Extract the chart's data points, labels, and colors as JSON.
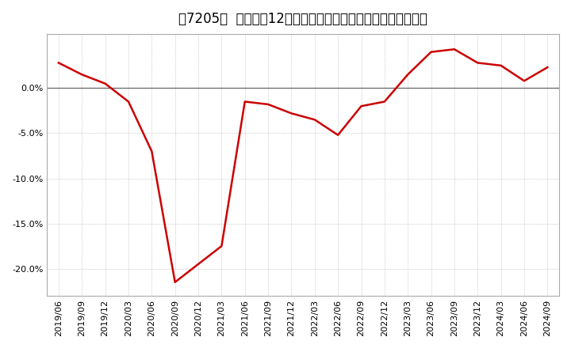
{
  "title": "［7205］  売上高の12か月移動合計の対前年同期増減率の推移",
  "line_color": "#cc0000",
  "bg_color": "#ffffff",
  "plot_bg_color": "#ffffff",
  "grid_color": "#aaaaaa",
  "x_labels": [
    "2019/06",
    "2019/09",
    "2019/12",
    "2020/03",
    "2020/06",
    "2020/09",
    "2020/12",
    "2021/03",
    "2021/06",
    "2021/09",
    "2021/12",
    "2022/03",
    "2022/06",
    "2022/09",
    "2022/12",
    "2023/03",
    "2023/06",
    "2023/09",
    "2023/12",
    "2024/03",
    "2024/06",
    "2024/09"
  ],
  "values": [
    2.8,
    1.5,
    0.5,
    -1.5,
    -7.0,
    -21.5,
    -19.5,
    -17.5,
    -1.5,
    -1.8,
    -2.8,
    -3.5,
    -5.2,
    -2.0,
    -1.5,
    1.5,
    4.0,
    4.3,
    2.8,
    2.5,
    0.8,
    2.3
  ],
  "ylim": [
    -23,
    6
  ],
  "yticks": [
    0.0,
    -5.0,
    -10.0,
    -15.0,
    -20.0
  ],
  "title_fontsize": 12,
  "tick_fontsize": 8
}
